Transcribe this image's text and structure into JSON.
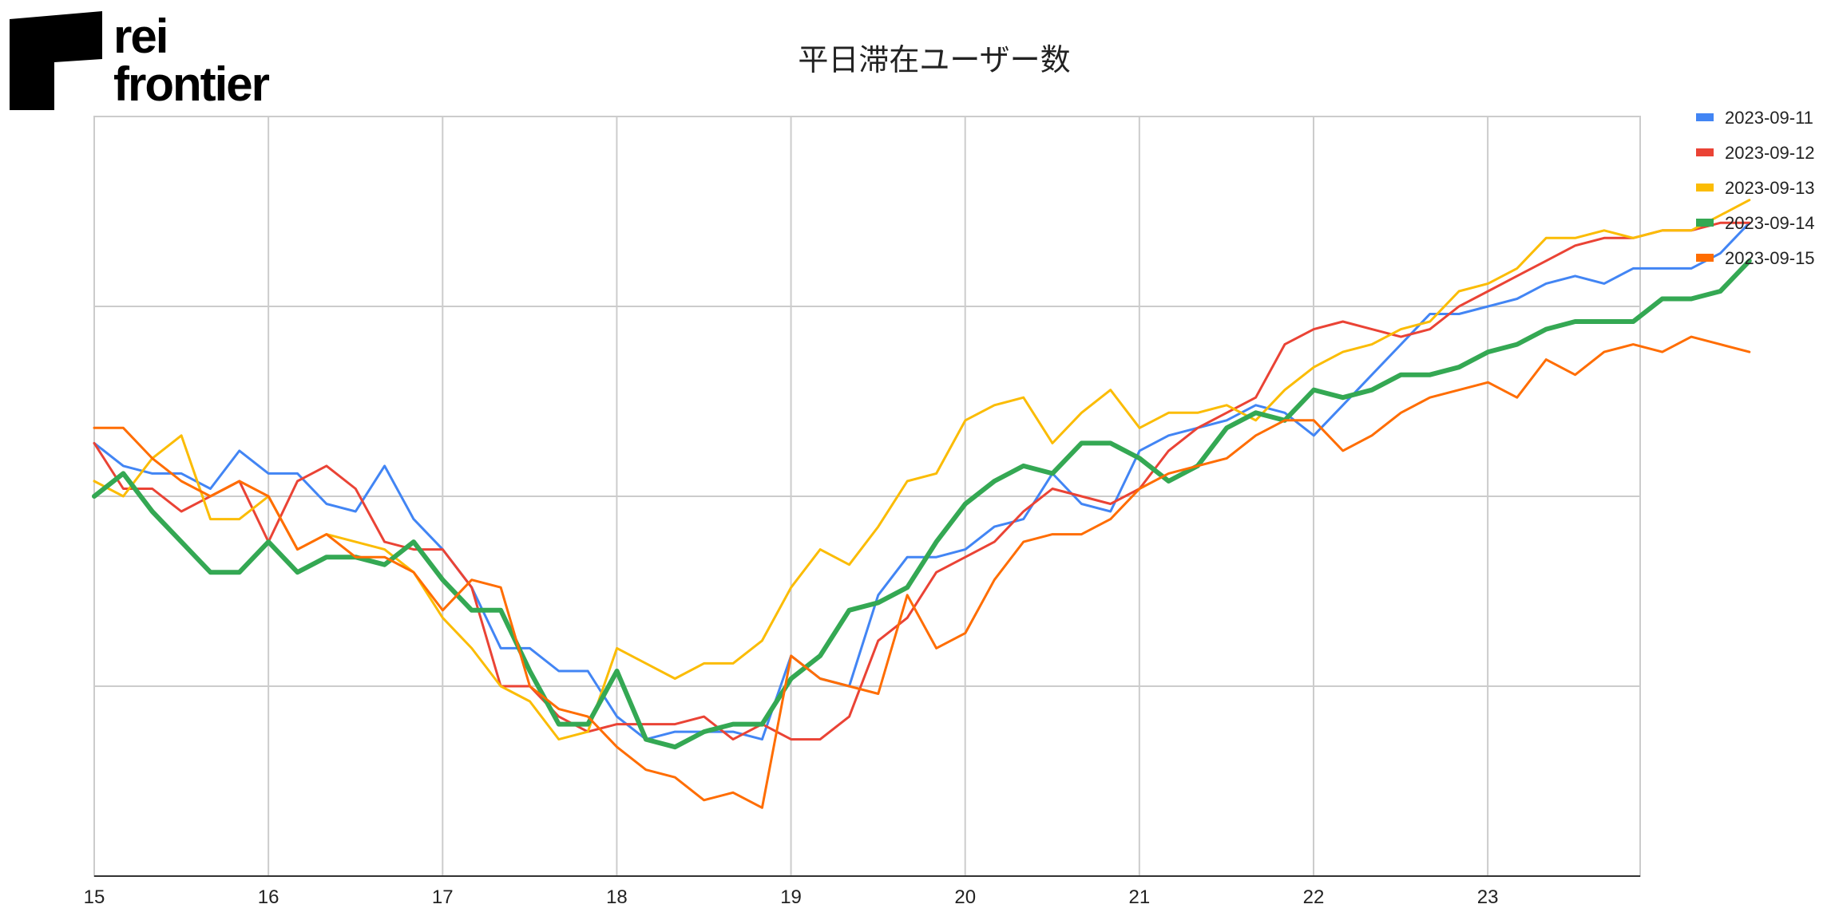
{
  "logo": {
    "line1": "rei",
    "line2": "frontier"
  },
  "chart_data": {
    "type": "line",
    "title": "平日滞在ユーザー数",
    "xlabel": "",
    "ylabel": "",
    "xlim": [
      15,
      23.875
    ],
    "ylim": [
      0,
      100
    ],
    "x_ticks": [
      "15",
      "16",
      "17",
      "18",
      "19",
      "20",
      "21",
      "22",
      "23"
    ],
    "y_gridlines": [
      25,
      50,
      75
    ],
    "grid": true,
    "legend": "right",
    "step": 0.1667,
    "series": [
      {
        "name": "2023-09-11",
        "color": "#4285F4",
        "width": 3,
        "values": [
          57,
          54,
          53,
          53,
          51,
          56,
          53,
          53,
          49,
          48,
          54,
          47,
          43,
          38,
          30,
          30,
          27,
          27,
          21,
          18,
          19,
          19,
          19,
          18,
          29,
          26,
          25,
          37,
          42,
          42,
          43,
          46,
          47,
          53,
          49,
          48,
          56,
          58,
          59,
          60,
          62,
          61,
          58,
          62,
          66,
          70,
          74,
          74,
          75,
          76,
          78,
          79,
          78,
          80,
          80,
          80,
          82,
          86
        ]
      },
      {
        "name": "2023-09-12",
        "color": "#EA4335",
        "width": 3,
        "values": [
          57,
          51,
          51,
          48,
          50,
          52,
          44,
          52,
          54,
          51,
          44,
          43,
          43,
          38,
          25,
          25,
          21,
          19,
          20,
          20,
          20,
          21,
          18,
          20,
          18,
          18,
          21,
          31,
          34,
          40,
          42,
          44,
          48,
          51,
          50,
          49,
          51,
          56,
          59,
          61,
          63,
          70,
          72,
          73,
          72,
          71,
          72,
          75,
          77,
          79,
          81,
          83,
          84,
          84,
          85,
          85,
          86,
          86
        ]
      },
      {
        "name": "2023-09-13",
        "color": "#FBBC04",
        "width": 3,
        "values": [
          52,
          50,
          55,
          58,
          47,
          47,
          50,
          43,
          45,
          44,
          43,
          40,
          34,
          30,
          25,
          23,
          18,
          19,
          30,
          28,
          26,
          28,
          28,
          31,
          38,
          43,
          41,
          46,
          52,
          53,
          60,
          62,
          63,
          57,
          61,
          64,
          59,
          61,
          61,
          62,
          60,
          64,
          67,
          69,
          70,
          72,
          73,
          77,
          78,
          80,
          84,
          84,
          85,
          84,
          85,
          85,
          87,
          89
        ]
      },
      {
        "name": "2023-09-14",
        "color": "#34A853",
        "width": 6,
        "values": [
          50,
          53,
          48,
          44,
          40,
          40,
          44,
          40,
          42,
          42,
          41,
          44,
          39,
          35,
          35,
          27,
          20,
          20,
          27,
          18,
          17,
          19,
          20,
          20,
          26,
          29,
          35,
          36,
          38,
          44,
          49,
          52,
          54,
          53,
          57,
          57,
          55,
          52,
          54,
          59,
          61,
          60,
          64,
          63,
          64,
          66,
          66,
          67,
          69,
          70,
          72,
          73,
          73,
          73,
          76,
          76,
          77,
          81
        ]
      },
      {
        "name": "2023-09-15",
        "color": "#FF6D01",
        "width": 3,
        "values": [
          59,
          59,
          55,
          52,
          50,
          52,
          50,
          43,
          45,
          42,
          42,
          40,
          35,
          39,
          38,
          25,
          22,
          21,
          17,
          14,
          13,
          10,
          11,
          9,
          29,
          26,
          25,
          24,
          37,
          30,
          32,
          39,
          44,
          45,
          45,
          47,
          51,
          53,
          54,
          55,
          58,
          60,
          60,
          56,
          58,
          61,
          63,
          64,
          65,
          63,
          68,
          66,
          69,
          70,
          69,
          71,
          70,
          69
        ]
      }
    ]
  }
}
